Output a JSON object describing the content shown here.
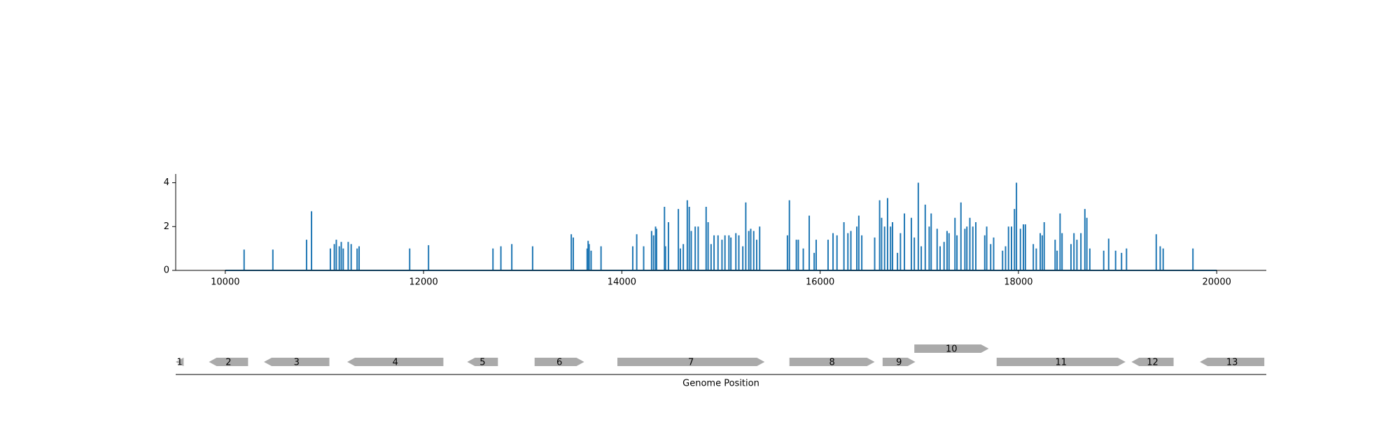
{
  "chart_data": [
    {
      "type": "spike",
      "color": "#1f77b4",
      "xlim": [
        9500,
        20500
      ],
      "xticks": [
        10000,
        12000,
        14000,
        16000,
        18000,
        20000
      ],
      "ylim": [
        0,
        4.4
      ],
      "yticks": [
        0,
        2,
        4
      ],
      "x": [
        10000,
        10190,
        10480,
        10820,
        10870,
        11060,
        11100,
        11120,
        11150,
        11170,
        11190,
        11240,
        11270,
        11330,
        11350,
        11860,
        12050,
        12700,
        12780,
        12890,
        13100,
        13490,
        13510,
        13650,
        13660,
        13670,
        13690,
        13790,
        14110,
        14150,
        14220,
        14300,
        14320,
        14340,
        14350,
        14430,
        14440,
        14470,
        14570,
        14590,
        14620,
        14660,
        14680,
        14700,
        14740,
        14770,
        14850,
        14870,
        14900,
        14930,
        14970,
        15010,
        15040,
        15080,
        15100,
        15150,
        15180,
        15220,
        15250,
        15280,
        15300,
        15330,
        15360,
        15390,
        15670,
        15690,
        15760,
        15780,
        15830,
        15890,
        15940,
        15960,
        16080,
        16130,
        16170,
        16240,
        16280,
        16310,
        16370,
        16390,
        16420,
        16550,
        16600,
        16620,
        16650,
        16680,
        16710,
        16730,
        16780,
        16810,
        16850,
        16920,
        16950,
        16990,
        17020,
        17060,
        17100,
        17120,
        17180,
        17210,
        17250,
        17280,
        17300,
        17360,
        17380,
        17420,
        17460,
        17480,
        17510,
        17540,
        17570,
        17660,
        17680,
        17720,
        17750,
        17840,
        17870,
        17900,
        17930,
        17960,
        17980,
        18020,
        18050,
        18070,
        18150,
        18180,
        18220,
        18240,
        18260,
        18370,
        18390,
        18420,
        18440,
        18530,
        18560,
        18590,
        18630,
        18670,
        18690,
        18720,
        18860,
        18910,
        18980,
        19040,
        19090,
        19390,
        19430,
        19460,
        19760,
        20000
      ],
      "values": [
        0,
        0.95,
        0.95,
        1.4,
        2.7,
        1.0,
        1.2,
        1.4,
        1.1,
        1.3,
        1.0,
        1.3,
        1.2,
        1.0,
        1.1,
        1.0,
        1.15,
        1.0,
        1.1,
        1.2,
        1.1,
        1.65,
        1.5,
        1.0,
        1.35,
        1.2,
        0.9,
        1.1,
        1.1,
        1.65,
        1.1,
        1.8,
        1.6,
        2.0,
        1.9,
        2.9,
        1.1,
        2.2,
        2.8,
        1.0,
        1.2,
        3.2,
        2.9,
        1.8,
        2.0,
        2.0,
        2.9,
        2.2,
        1.2,
        1.6,
        1.6,
        1.4,
        1.6,
        1.6,
        1.5,
        1.7,
        1.6,
        1.1,
        3.1,
        1.8,
        1.9,
        1.8,
        1.4,
        2.0,
        1.6,
        3.2,
        1.4,
        1.4,
        1.0,
        2.5,
        0.8,
        1.4,
        1.4,
        1.7,
        1.6,
        2.2,
        1.7,
        1.8,
        2.0,
        2.5,
        1.6,
        1.5,
        3.2,
        2.4,
        2.0,
        3.3,
        2.0,
        2.2,
        0.8,
        1.7,
        2.6,
        2.4,
        1.5,
        4.0,
        1.1,
        3.0,
        2.0,
        2.6,
        1.9,
        1.1,
        1.3,
        1.8,
        1.7,
        2.4,
        1.6,
        3.1,
        1.9,
        2.0,
        2.4,
        2.0,
        2.2,
        1.6,
        2.0,
        1.2,
        1.5,
        0.9,
        1.1,
        2.0,
        2.0,
        2.8,
        4.0,
        1.9,
        2.1,
        2.1,
        1.2,
        1.0,
        1.7,
        1.6,
        2.2,
        1.4,
        0.9,
        2.6,
        1.7,
        1.2,
        1.7,
        1.4,
        1.7,
        2.8,
        2.4,
        1.0,
        0.9,
        1.45,
        0.9,
        0.8,
        1.0,
        1.65,
        1.1,
        1.0,
        1.0,
        0
      ]
    },
    {
      "type": "genes",
      "color": "#aaaaaa",
      "xlim": [
        9500,
        20500
      ],
      "xlabel": "Genome Position",
      "genes": [
        {
          "label": "1",
          "start": 9500,
          "end": 9580,
          "strand": "-"
        },
        {
          "label": "2",
          "start": 9835,
          "end": 10230,
          "strand": "-"
        },
        {
          "label": "3",
          "start": 10390,
          "end": 11050,
          "strand": "-"
        },
        {
          "label": "4",
          "start": 11230,
          "end": 12200,
          "strand": "-"
        },
        {
          "label": "5",
          "start": 12440,
          "end": 12750,
          "strand": "-"
        },
        {
          "label": "6",
          "start": 13120,
          "end": 13620,
          "strand": "+"
        },
        {
          "label": "7",
          "start": 13955,
          "end": 15440,
          "strand": "+"
        },
        {
          "label": "8",
          "start": 15690,
          "end": 16550,
          "strand": "+"
        },
        {
          "label": "9",
          "start": 16630,
          "end": 16960,
          "strand": "+"
        },
        {
          "label": "10",
          "start": 16950,
          "end": 17700,
          "strand": "+"
        },
        {
          "label": "11",
          "start": 17780,
          "end": 19080,
          "strand": "+"
        },
        {
          "label": "12",
          "start": 19140,
          "end": 19565,
          "strand": "-"
        },
        {
          "label": "13",
          "start": 19830,
          "end": 20480,
          "strand": "-"
        }
      ]
    }
  ]
}
